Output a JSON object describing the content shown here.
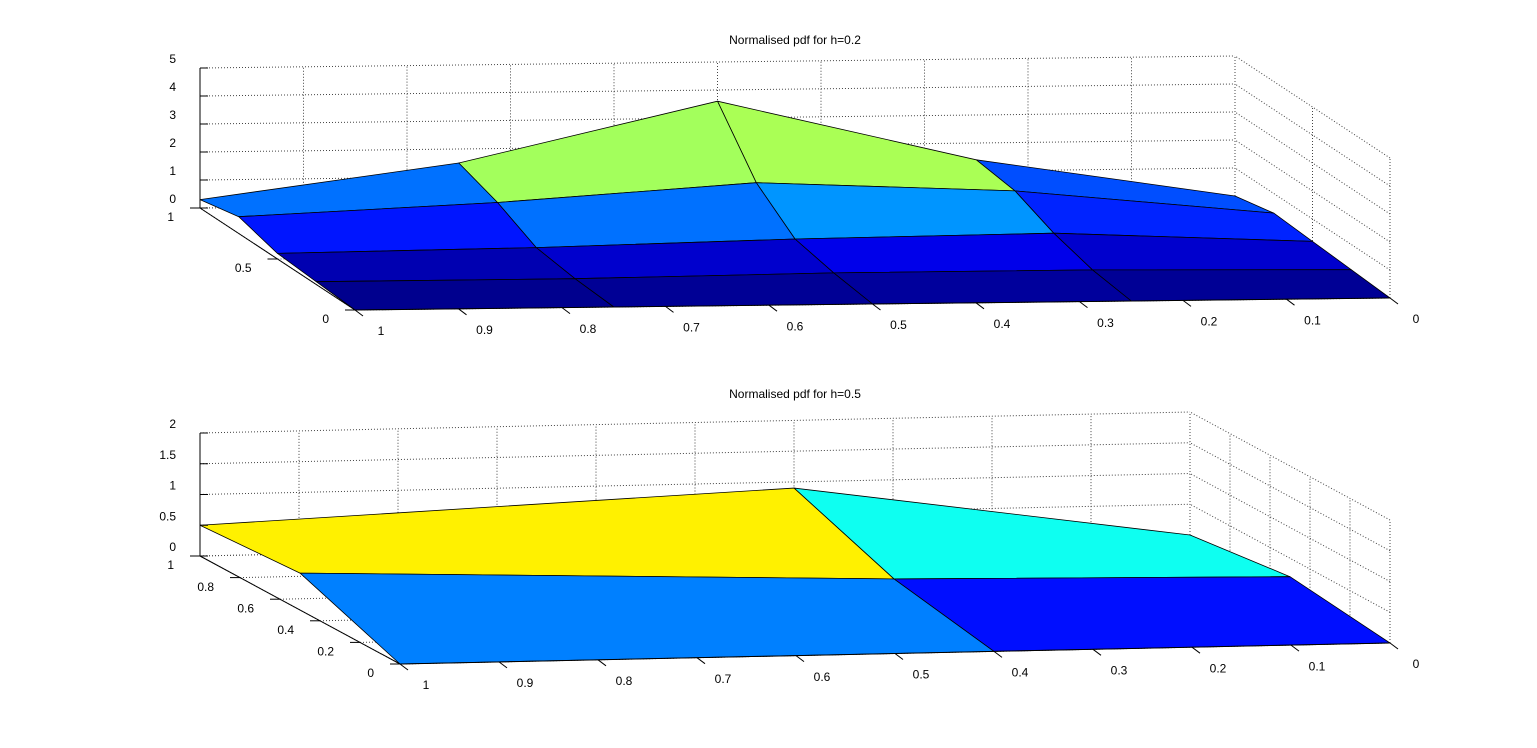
{
  "chart_data": [
    {
      "type": "surface",
      "title": "Normalised pdf for h=0.2",
      "x": [
        0,
        0.25,
        0.5,
        0.75,
        1
      ],
      "y": [
        0,
        0.25,
        0.5,
        0.75,
        1
      ],
      "z": [
        [
          0,
          0,
          0,
          0,
          0
        ],
        [
          0.1,
          0.2,
          0.2,
          0.1,
          0.1
        ],
        [
          0.2,
          0.6,
          0.5,
          0.3,
          0.2
        ],
        [
          0.3,
          1.2,
          1.6,
          1.0,
          0.6
        ],
        [
          0,
          1.4,
          3.6,
          1.5,
          0.3
        ]
      ],
      "xlim": [
        0,
        1
      ],
      "ylim": [
        0,
        1
      ],
      "zlim": [
        0,
        5
      ],
      "xdir": "reverse",
      "xticks": [
        0,
        0.1,
        0.2,
        0.3,
        0.4,
        0.5,
        0.6,
        0.7,
        0.8,
        0.9,
        1
      ],
      "yticks": [
        0,
        0.5,
        1
      ],
      "zticks": [
        0,
        1,
        2,
        3,
        4,
        5
      ],
      "grid": true,
      "colormap": "jet"
    },
    {
      "type": "surface",
      "title": "Normalised pdf for h=0.5",
      "x": [
        0,
        0.4,
        1
      ],
      "y": [
        0,
        0.5,
        1
      ],
      "z": [
        [
          0,
          0,
          0
        ],
        [
          0.2,
          0.3,
          0.6
        ],
        [
          0,
          0.9,
          0.5
        ]
      ],
      "xlim": [
        0,
        1
      ],
      "ylim": [
        0,
        1
      ],
      "zlim": [
        0,
        2
      ],
      "xdir": "reverse",
      "xticks": [
        0,
        0.1,
        0.2,
        0.3,
        0.4,
        0.5,
        0.6,
        0.7,
        0.8,
        0.9,
        1
      ],
      "yticks": [
        0,
        0.2,
        0.4,
        0.6,
        0.8,
        1
      ],
      "zticks": [
        0,
        0.5,
        1,
        1.5,
        2
      ],
      "grid": true,
      "colormap": "jet"
    }
  ]
}
